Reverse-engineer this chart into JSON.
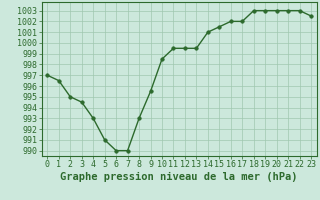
{
  "x": [
    0,
    1,
    2,
    3,
    4,
    5,
    6,
    7,
    8,
    9,
    10,
    11,
    12,
    13,
    14,
    15,
    16,
    17,
    18,
    19,
    20,
    21,
    22,
    23
  ],
  "y": [
    997,
    996.5,
    995,
    994.5,
    993,
    991,
    990,
    990,
    993,
    995.5,
    998.5,
    999.5,
    999.5,
    999.5,
    1001,
    1001.5,
    1002,
    1002,
    1003,
    1003,
    1003,
    1003,
    1003,
    1002.5
  ],
  "line_color": "#2d6a2d",
  "marker_color": "#2d6a2d",
  "background_color": "#cce8dc",
  "grid_color": "#a0c8b0",
  "title": "Graphe pression niveau de la mer (hPa)",
  "xlabel_ticks": [
    "0",
    "1",
    "2",
    "3",
    "4",
    "5",
    "6",
    "7",
    "8",
    "9",
    "10",
    "11",
    "12",
    "13",
    "14",
    "15",
    "16",
    "17",
    "18",
    "19",
    "20",
    "21",
    "22",
    "23"
  ],
  "ylim": [
    989.5,
    1003.8
  ],
  "yticks": [
    990,
    991,
    992,
    993,
    994,
    995,
    996,
    997,
    998,
    999,
    1000,
    1001,
    1002,
    1003
  ],
  "title_fontsize": 7.5,
  "tick_fontsize": 6,
  "line_width": 1.0,
  "marker_size": 2.5
}
